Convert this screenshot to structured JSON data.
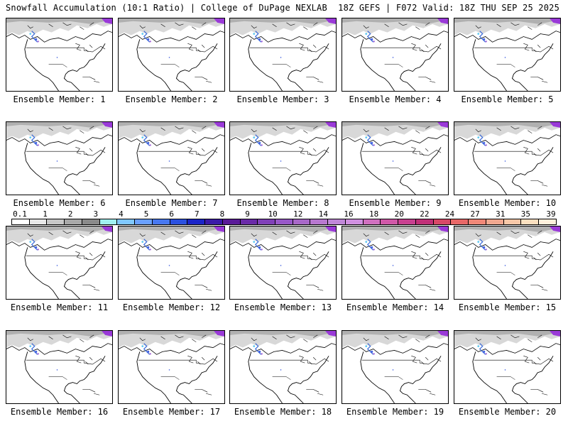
{
  "header": {
    "title_left": "Snowfall Accumulation (10:1 Ratio) | College of DuPage NEXLAB",
    "title_right": "18Z GEFS | F072 Valid: 18Z THU SEP 25 2025"
  },
  "panels": [
    {
      "label": "Ensemble Member: 1"
    },
    {
      "label": "Ensemble Member: 2"
    },
    {
      "label": "Ensemble Member: 3"
    },
    {
      "label": "Ensemble Member: 4"
    },
    {
      "label": "Ensemble Member: 5"
    },
    {
      "label": "Ensemble Member: 6"
    },
    {
      "label": "Ensemble Member: 7"
    },
    {
      "label": "Ensemble Member: 8"
    },
    {
      "label": "Ensemble Member: 9"
    },
    {
      "label": "Ensemble Member: 10"
    },
    {
      "label": "Ensemble Member: 11"
    },
    {
      "label": "Ensemble Member: 12"
    },
    {
      "label": "Ensemble Member: 13"
    },
    {
      "label": "Ensemble Member: 14"
    },
    {
      "label": "Ensemble Member: 15"
    },
    {
      "label": "Ensemble Member: 16"
    },
    {
      "label": "Ensemble Member: 17"
    },
    {
      "label": "Ensemble Member: 18"
    },
    {
      "label": "Ensemble Member: 19"
    },
    {
      "label": "Ensemble Member: 20"
    }
  ],
  "colorbar": {
    "labels": [
      "0.1",
      "1",
      "2",
      "3",
      "4",
      "5",
      "6",
      "7",
      "8",
      "9",
      "10",
      "12",
      "14",
      "16",
      "18",
      "20",
      "22",
      "24",
      "27",
      "31",
      "35",
      "39"
    ],
    "colors": [
      "#ffffff",
      "#e8e8e8",
      "#c8c8c8",
      "#a8a8a8",
      "#8a8a8a",
      "#a0f0f0",
      "#80c8ff",
      "#6aa0ff",
      "#4878f0",
      "#2a50e0",
      "#1a24c8",
      "#3a1aa8",
      "#5a1a98",
      "#6a2aa8",
      "#8040b8",
      "#9858c8",
      "#a868c8",
      "#b878d0",
      "#c088d8",
      "#d090e0",
      "#d070c0",
      "#d058a8",
      "#c84090",
      "#c03078",
      "#d84868",
      "#e86868",
      "#f08878",
      "#f0a890",
      "#f8c8a8",
      "#fce0c0",
      "#fff0dc"
    ]
  }
}
